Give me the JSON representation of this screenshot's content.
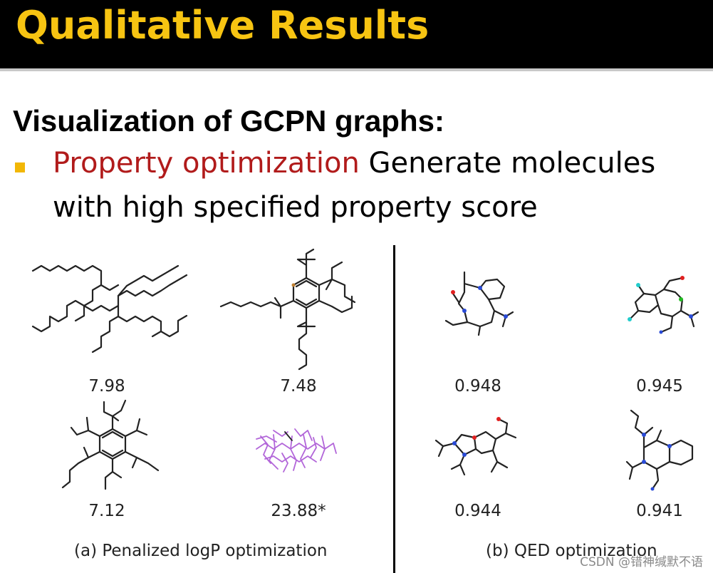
{
  "slide": {
    "title": "Qualitative Results",
    "heading": "Visualization of GCPN graphs:",
    "bullet": {
      "highlight": "Property optimization",
      "text_line1": " Generate molecules",
      "text_line2": "with high specified property score",
      "highlight_color": "#b11b1b",
      "bullet_color": "#f2b705"
    },
    "title_color": "#f7c412"
  },
  "figure": {
    "left_panel": {
      "caption": "(a) Penalized logP optimization",
      "scores": [
        "7.98",
        "7.48",
        "7.12",
        "23.88*"
      ]
    },
    "right_panel": {
      "caption": "(b) QED optimization",
      "scores": [
        "0.948",
        "0.945",
        "0.944",
        "0.941"
      ]
    }
  },
  "watermark": "CSDN @错神缄默不语"
}
